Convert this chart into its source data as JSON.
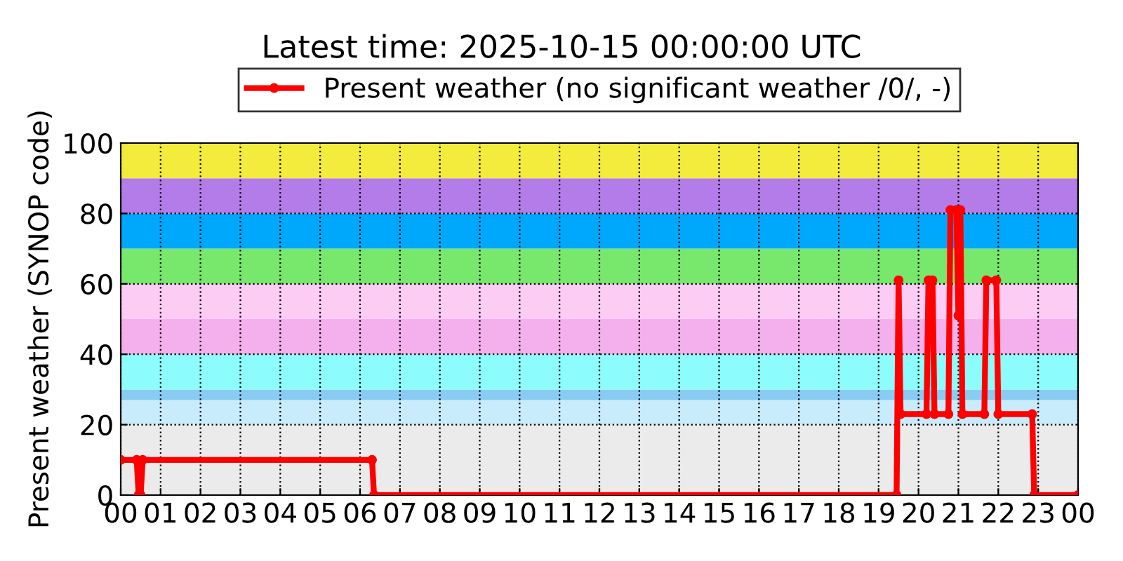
{
  "chart_data": {
    "type": "line",
    "title": "Latest time: 2025-10-15 00:00:00 UTC",
    "ylabel": "Present weather (SYNOP code)",
    "x": [
      0,
      0.4,
      0.45,
      0.5,
      0.55,
      6.3,
      6.35,
      19.45,
      19.5,
      19.55,
      20.2,
      20.25,
      20.35,
      20.4,
      20.75,
      20.8,
      20.95,
      21.0,
      21.05,
      21.1,
      21.65,
      21.7,
      21.95,
      22.0,
      22.85,
      22.9,
      24
    ],
    "series": [
      {
        "name": "Present weather (no significant weather /0/, -)",
        "color": "#ff0000",
        "values": [
          10,
          10,
          0,
          0,
          10,
          10,
          0,
          0,
          61,
          23,
          23,
          61,
          61,
          23,
          23,
          81,
          81,
          51,
          81,
          23,
          23,
          61,
          61,
          23,
          23,
          0,
          0
        ]
      }
    ],
    "xlim": [
      0,
      24
    ],
    "xticks": [
      {
        "value": 0,
        "label": "00"
      },
      {
        "value": 1,
        "label": "01"
      },
      {
        "value": 2,
        "label": "02"
      },
      {
        "value": 3,
        "label": "03"
      },
      {
        "value": 4,
        "label": "04"
      },
      {
        "value": 5,
        "label": "05"
      },
      {
        "value": 6,
        "label": "06"
      },
      {
        "value": 7,
        "label": "07"
      },
      {
        "value": 8,
        "label": "08"
      },
      {
        "value": 9,
        "label": "09"
      },
      {
        "value": 10,
        "label": "10"
      },
      {
        "value": 11,
        "label": "11"
      },
      {
        "value": 12,
        "label": "12"
      },
      {
        "value": 13,
        "label": "13"
      },
      {
        "value": 14,
        "label": "14"
      },
      {
        "value": 15,
        "label": "15"
      },
      {
        "value": 16,
        "label": "16"
      },
      {
        "value": 17,
        "label": "17"
      },
      {
        "value": 18,
        "label": "18"
      },
      {
        "value": 19,
        "label": "19"
      },
      {
        "value": 20,
        "label": "20"
      },
      {
        "value": 21,
        "label": "21"
      },
      {
        "value": 22,
        "label": "22"
      },
      {
        "value": 23,
        "label": "23"
      },
      {
        "value": 24,
        "label": "00"
      }
    ],
    "ylim": [
      0,
      100
    ],
    "yticks": [
      0,
      20,
      40,
      60,
      80,
      100
    ],
    "bands": [
      {
        "axis": "y",
        "from": 0,
        "to": 20,
        "color": "#ebebeb"
      },
      {
        "axis": "y",
        "from": 20,
        "to": 27,
        "color": "#c8ecfc"
      },
      {
        "axis": "y",
        "from": 27,
        "to": 30,
        "color": "#88ccf4"
      },
      {
        "axis": "y",
        "from": 30,
        "to": 40,
        "color": "#8cfcfc"
      },
      {
        "axis": "y",
        "from": 40,
        "to": 50,
        "color": "#f4b0ec"
      },
      {
        "axis": "y",
        "from": 50,
        "to": 60,
        "color": "#fcccf4"
      },
      {
        "axis": "y",
        "from": 60,
        "to": 70,
        "color": "#78e86c"
      },
      {
        "axis": "y",
        "from": 70,
        "to": 80,
        "color": "#00a8fc"
      },
      {
        "axis": "y",
        "from": 80,
        "to": 90,
        "color": "#b47ce8"
      },
      {
        "axis": "y",
        "from": 90,
        "to": 100,
        "color": "#f4ec3c"
      }
    ],
    "grid": true,
    "legend": "top",
    "marker": "circle",
    "line_style": "solid"
  }
}
